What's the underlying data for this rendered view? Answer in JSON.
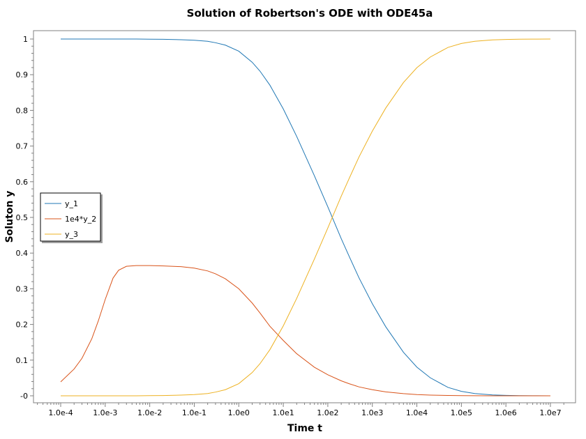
{
  "chart_data": {
    "type": "line",
    "title": "Solution of Robertson's ODE with ODE45a",
    "xlabel": "Time t",
    "ylabel": "Soluton y",
    "x_scale": "log",
    "xlim": [
      0.0001,
      10000000
    ],
    "ylim": [
      0,
      1
    ],
    "x_ticks": [
      "1.0e-4",
      "1.0e-3",
      "1.0e-2",
      "1.0e-1",
      "1.0e0",
      "1.0e1",
      "1.0e2",
      "1.0e3",
      "1.0e4",
      "1.0e5",
      "1.0e6",
      "1.0e7"
    ],
    "y_ticks": [
      "-0",
      "0.1",
      "0.2",
      "0.3",
      "0.4",
      "0.5",
      "0.6",
      "0.7",
      "0.8",
      "0.9",
      "1"
    ],
    "grid": false,
    "legend_position": "left-middle",
    "x": [
      0.0001,
      0.0002,
      0.0003,
      0.0005,
      0.0007,
      0.001,
      0.0015,
      0.002,
      0.003,
      0.005,
      0.01,
      0.02,
      0.05,
      0.1,
      0.2,
      0.3,
      0.5,
      1,
      2,
      3,
      5,
      10,
      20,
      50,
      100,
      200,
      300,
      500,
      1000,
      2000,
      5000,
      10000,
      20000,
      50000,
      100000,
      200000,
      500000,
      1000000,
      2000000,
      5000000,
      10000000
    ],
    "series": [
      {
        "name": "y_1",
        "color": "#1f77b4",
        "values": [
          1.0,
          1.0,
          1.0,
          1.0,
          1.0,
          1.0,
          1.0,
          1.0,
          1.0,
          1.0,
          0.9996,
          0.9992,
          0.998,
          0.9966,
          0.9937,
          0.9896,
          0.9829,
          0.9659,
          0.9349,
          0.9099,
          0.8707,
          0.8039,
          0.7269,
          0.6165,
          0.5297,
          0.4405,
          0.3915,
          0.3309,
          0.258,
          0.1935,
          0.1219,
          0.0804,
          0.0505,
          0.0235,
          0.0124,
          0.0063,
          0.0024,
          0.0012,
          0.0006,
          0.0002,
          0.0001
        ]
      },
      {
        "name": "1e4*y_2",
        "color": "#d95319",
        "values": [
          0.039,
          0.075,
          0.105,
          0.16,
          0.21,
          0.27,
          0.33,
          0.352,
          0.363,
          0.365,
          0.365,
          0.364,
          0.362,
          0.358,
          0.35,
          0.342,
          0.328,
          0.3,
          0.26,
          0.232,
          0.195,
          0.155,
          0.118,
          0.08,
          0.059,
          0.042,
          0.034,
          0.025,
          0.017,
          0.011,
          0.006,
          0.0034,
          0.002,
          0.0009,
          0.0004,
          0.0002,
          0.0001,
          0.0,
          0.0,
          0.0,
          0.0
        ]
      },
      {
        "name": "y_3",
        "color": "#edb120",
        "values": [
          0.0,
          0.0,
          0.0,
          0.0,
          0.0,
          0.0,
          0.0,
          0.0,
          0.0,
          0.0,
          0.0004,
          0.0008,
          0.002,
          0.0034,
          0.0063,
          0.0104,
          0.0171,
          0.0341,
          0.0651,
          0.0901,
          0.1293,
          0.1961,
          0.2731,
          0.3835,
          0.4703,
          0.5595,
          0.6085,
          0.6691,
          0.742,
          0.8065,
          0.8781,
          0.9196,
          0.9495,
          0.9765,
          0.9876,
          0.9937,
          0.9976,
          0.9988,
          0.9994,
          0.9998,
          0.9999
        ]
      }
    ]
  }
}
